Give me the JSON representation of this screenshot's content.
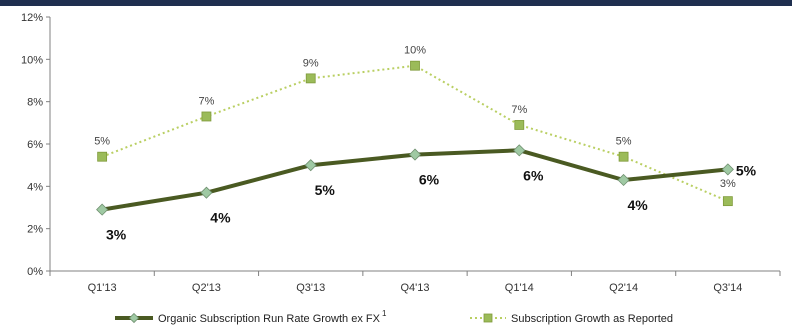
{
  "chart_data": {
    "type": "line",
    "categories": [
      "Q1'13",
      "Q2'13",
      "Q3'13",
      "Q4'13",
      "Q1'14",
      "Q2'14",
      "Q3'14"
    ],
    "ylim": [
      0,
      12
    ],
    "yticks": [
      "0%",
      "2%",
      "4%",
      "6%",
      "8%",
      "10%",
      "12%"
    ],
    "grid": false,
    "legend_position": "bottom",
    "series": [
      {
        "name": "Organic Subscription Run Rate Growth ex FX",
        "name_superscript": "1",
        "style": "solid",
        "marker": "diamond",
        "color": "#4a5a22",
        "marker_color": "#9fc9a3",
        "values": [
          2.9,
          3.7,
          5.0,
          5.5,
          5.7,
          4.3,
          4.8
        ],
        "labels": [
          "3%",
          "4%",
          "5%",
          "6%",
          "6%",
          "4%",
          "5%"
        ]
      },
      {
        "name": "Subscription Growth as Reported",
        "style": "dotted",
        "marker": "square",
        "color": "#b9cf62",
        "marker_color": "#9bbb59",
        "values": [
          5.4,
          7.3,
          9.1,
          9.7,
          6.9,
          5.4,
          3.3
        ],
        "labels": [
          "5%",
          "7%",
          "9%",
          "10%",
          "7%",
          "5%",
          "3%"
        ]
      }
    ]
  },
  "header_bar_color": "#1f2f4f"
}
